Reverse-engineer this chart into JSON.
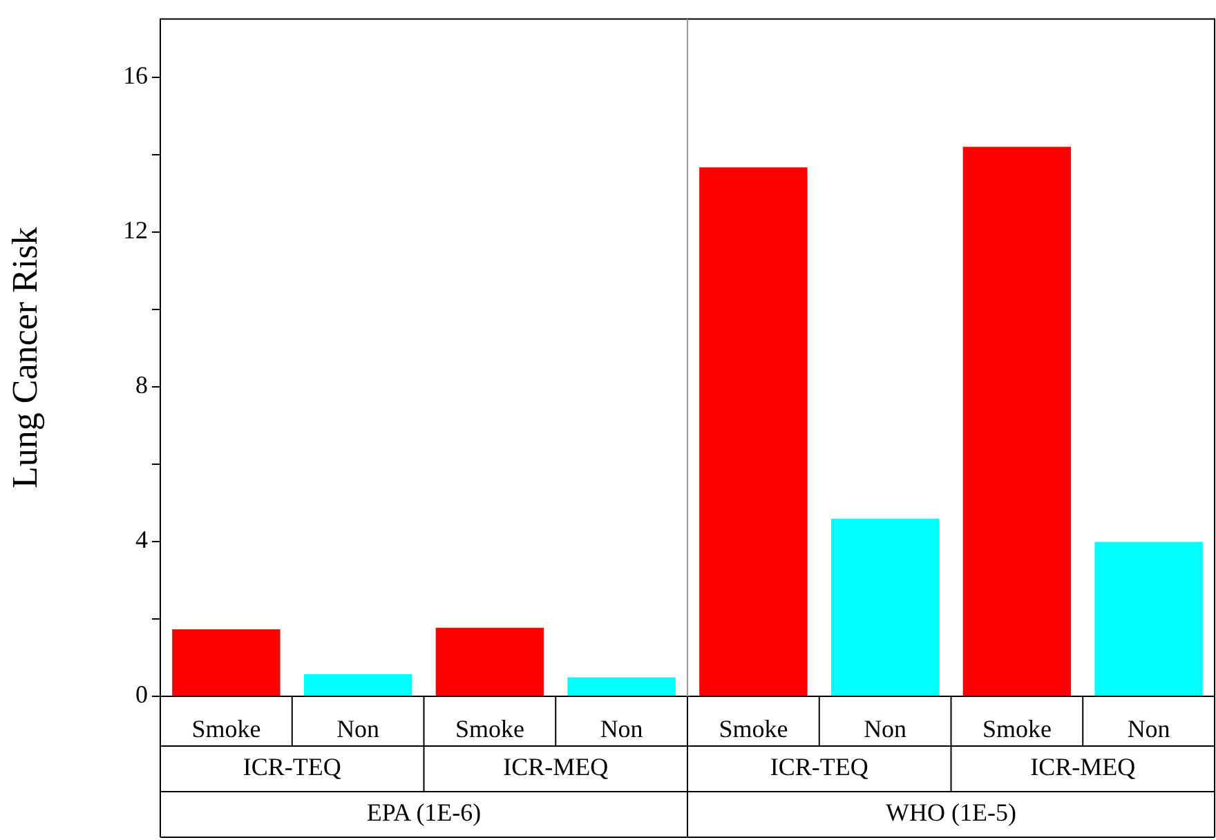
{
  "chart_data": {
    "type": "bar",
    "ylabel": "Lung Cancer Risk",
    "categories": [
      "Smoke",
      "Non",
      "Smoke",
      "Non",
      "Smoke",
      "Non",
      "Smoke",
      "Non"
    ],
    "values": [
      1.73,
      0.57,
      1.77,
      0.49,
      13.67,
      4.59,
      14.2,
      3.99
    ],
    "colors": [
      "#ff0000",
      "#00ffff",
      "#ff0000",
      "#00ffff",
      "#ff0000",
      "#00ffff",
      "#ff0000",
      "#00ffff"
    ],
    "ylim": [
      0,
      17.5
    ],
    "yticks": [
      0,
      {
        "value": 2,
        "label": null
      },
      4,
      {
        "value": 6,
        "label": null
      },
      8,
      {
        "value": 10,
        "label": null
      },
      12,
      {
        "value": 14,
        "label": null
      },
      16
    ],
    "annotations": [
      "ICR-TEQ",
      "ICR-MEQ",
      "ICR-TEQ",
      "ICR-MEQ",
      "EPA (1E-6)",
      "WHO (1E-5)"
    ],
    "grid": false,
    "legend": false
  }
}
